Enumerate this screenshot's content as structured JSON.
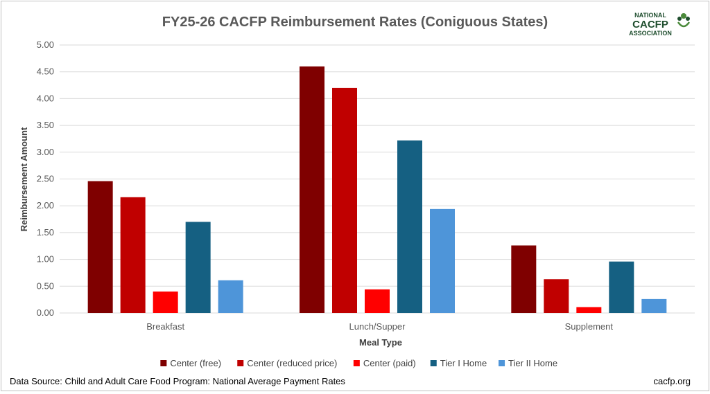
{
  "chart_data": {
    "type": "bar",
    "title": "FY25-26 CACFP Reimbursement Rates (Coniguous States)",
    "xlabel": "Meal Type",
    "ylabel": "Reimbursement Amount",
    "ylim": [
      0,
      5
    ],
    "yticks": [
      "0.00",
      "0.50",
      "1.00",
      "1.50",
      "2.00",
      "2.50",
      "3.00",
      "3.50",
      "4.00",
      "4.50",
      "5.00"
    ],
    "grid": true,
    "legend_position": "bottom",
    "categories": [
      "Breakfast",
      "Lunch/Supper",
      "Supplement"
    ],
    "series": [
      {
        "name": "Center (free)",
        "color": "#7f0000",
        "values": [
          2.46,
          4.6,
          1.26
        ]
      },
      {
        "name": "Center (reduced price)",
        "color": "#c00000",
        "values": [
          2.16,
          4.2,
          0.63
        ]
      },
      {
        "name": "Center (paid)",
        "color": "#ff0000",
        "values": [
          0.4,
          0.44,
          0.11
        ]
      },
      {
        "name": "Tier I Home",
        "color": "#156082",
        "values": [
          1.7,
          3.22,
          0.96
        ]
      },
      {
        "name": "Tier II Home",
        "color": "#4e95d9",
        "values": [
          0.61,
          1.94,
          0.26
        ]
      }
    ]
  },
  "logo": {
    "line1": "NATIONAL",
    "line2": "CACFP",
    "line3": "ASSOCIATION",
    "color": "#1f4e2e",
    "accent": "#4a8a3a"
  },
  "footer": {
    "source": "Data Source: Child and Adult Care Food Program: National Average Payment Rates",
    "website": "cacfp.org"
  }
}
